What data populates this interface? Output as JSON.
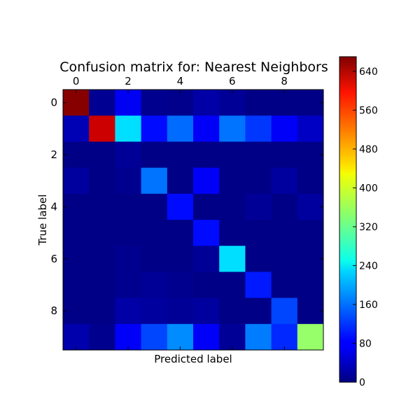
{
  "chart_data": {
    "type": "heatmap",
    "title": "Confusion matrix for: Nearest Neighbors",
    "xlabel": "Predicted label",
    "ylabel": "True label",
    "x_tick_labels": [
      "0",
      "2",
      "4",
      "6",
      "8"
    ],
    "y_tick_labels": [
      "0",
      "2",
      "4",
      "6",
      "8"
    ],
    "colormap": "jet",
    "color_range": [
      0,
      670
    ],
    "colorbar_ticks": [
      "0",
      "80",
      "160",
      "240",
      "320",
      "400",
      "480",
      "560",
      "640"
    ],
    "matrix": [
      [
        665,
        12,
        75,
        10,
        8,
        25,
        15,
        5,
        5,
        5
      ],
      [
        35,
        620,
        230,
        90,
        155,
        80,
        160,
        120,
        80,
        45
      ],
      [
        5,
        5,
        15,
        5,
        5,
        5,
        5,
        5,
        5,
        5
      ],
      [
        20,
        5,
        10,
        160,
        5,
        80,
        5,
        5,
        20,
        5
      ],
      [
        5,
        5,
        5,
        5,
        90,
        5,
        5,
        15,
        5,
        20
      ],
      [
        5,
        5,
        5,
        5,
        5,
        90,
        5,
        5,
        5,
        5
      ],
      [
        5,
        5,
        10,
        5,
        5,
        15,
        230,
        5,
        5,
        5
      ],
      [
        5,
        5,
        10,
        15,
        10,
        5,
        5,
        100,
        5,
        5
      ],
      [
        5,
        5,
        25,
        20,
        15,
        20,
        5,
        5,
        130,
        5
      ],
      [
        30,
        10,
        80,
        130,
        175,
        80,
        15,
        165,
        110,
        350
      ]
    ]
  }
}
